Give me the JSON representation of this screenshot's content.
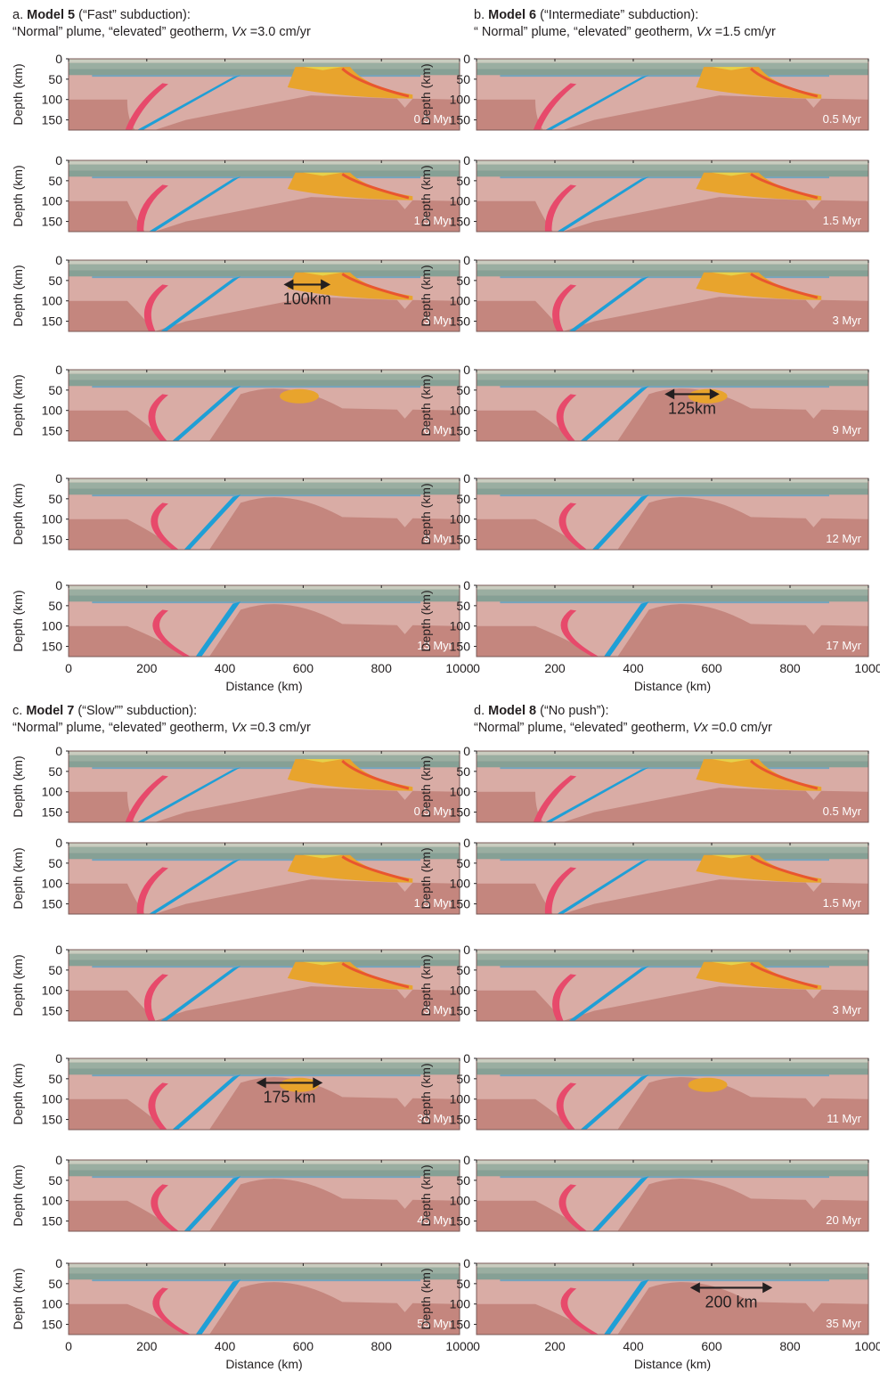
{
  "colors": {
    "sticky_air": "#c9ccbf",
    "upper_crust": "#9aaea1",
    "lower_crust": "#86a095",
    "lithosphere": "#d9aca5",
    "asthenosphere": "#c4867e",
    "plume": "#e8a42d",
    "plume_hot": "#e9562f",
    "sediment_yellow": "#e6d14a",
    "hydrated": "#1f9fd6",
    "melt_pink": "#e74a6b",
    "frame": "#7a5a57"
  },
  "axes": {
    "depth_label": "Depth (km)",
    "distance_label": "Distance (km)",
    "depth_ticks": [
      "0",
      "50",
      "100",
      "150"
    ],
    "distance_ticks": [
      "0",
      "200",
      "400",
      "600",
      "800",
      "1000"
    ]
  },
  "panels": {
    "a": {
      "prefix": "a.",
      "model": "Model 5",
      "type": "(“Fast” subduction):",
      "line2_text": "“Normal” plume, “elevated” geotherm,",
      "vx_symbol": "Vx",
      "vx_value": "=3.0 cm/yr",
      "times": [
        "0.5 Myr",
        "1.5 Myr",
        "3 Myr",
        "6 Myr",
        "9 Myr",
        "13 Myr"
      ]
    },
    "b": {
      "prefix": "b.",
      "model": "Model 6",
      "type": "(“Intermediate” subduction):",
      "line2_text": "“ Normal” plume, “elevated” geotherm,",
      "vx_symbol": "Vx",
      "vx_value": "=1.5 cm/yr",
      "times": [
        "0.5 Myr",
        "1.5 Myr",
        "3 Myr",
        "9 Myr",
        "12 Myr",
        "17 Myr"
      ]
    },
    "c": {
      "prefix": "c.",
      "model": "Model 7",
      "type": "(“Slow”” subduction):",
      "line2_text": "“Normal” plume, “elevated” geotherm,",
      "vx_symbol": "Vx",
      "vx_value": "=0.3 cm/yr",
      "times": [
        "0.5 Myr",
        "1.5 Myr",
        "3 Myr",
        "30 Myr",
        "45 Myr",
        "55 Myr"
      ]
    },
    "d": {
      "prefix": "d.",
      "model": "Model 8",
      "type": "(“No push”):",
      "line2_text": "“Normal” plume, “elevated” geotherm,",
      "vx_symbol": "Vx",
      "vx_value": "=0.0 cm/yr",
      "times": [
        "0.5 Myr",
        "1.5 Myr",
        "3 Myr",
        "11 Myr",
        "20 Myr",
        "35 Myr"
      ]
    }
  },
  "annotations": [
    {
      "panel": "a",
      "frame": 2,
      "label": "100km",
      "from_km": 550,
      "to_km": 670
    },
    {
      "panel": "b",
      "frame": 3,
      "label": "125km",
      "from_km": 480,
      "to_km": 620
    },
    {
      "panel": "c",
      "frame": 3,
      "label": "175 km",
      "from_km": 480,
      "to_km": 650
    },
    {
      "panel": "d",
      "frame": 5,
      "label": "200 km",
      "from_km": 545,
      "to_km": 755
    }
  ]
}
